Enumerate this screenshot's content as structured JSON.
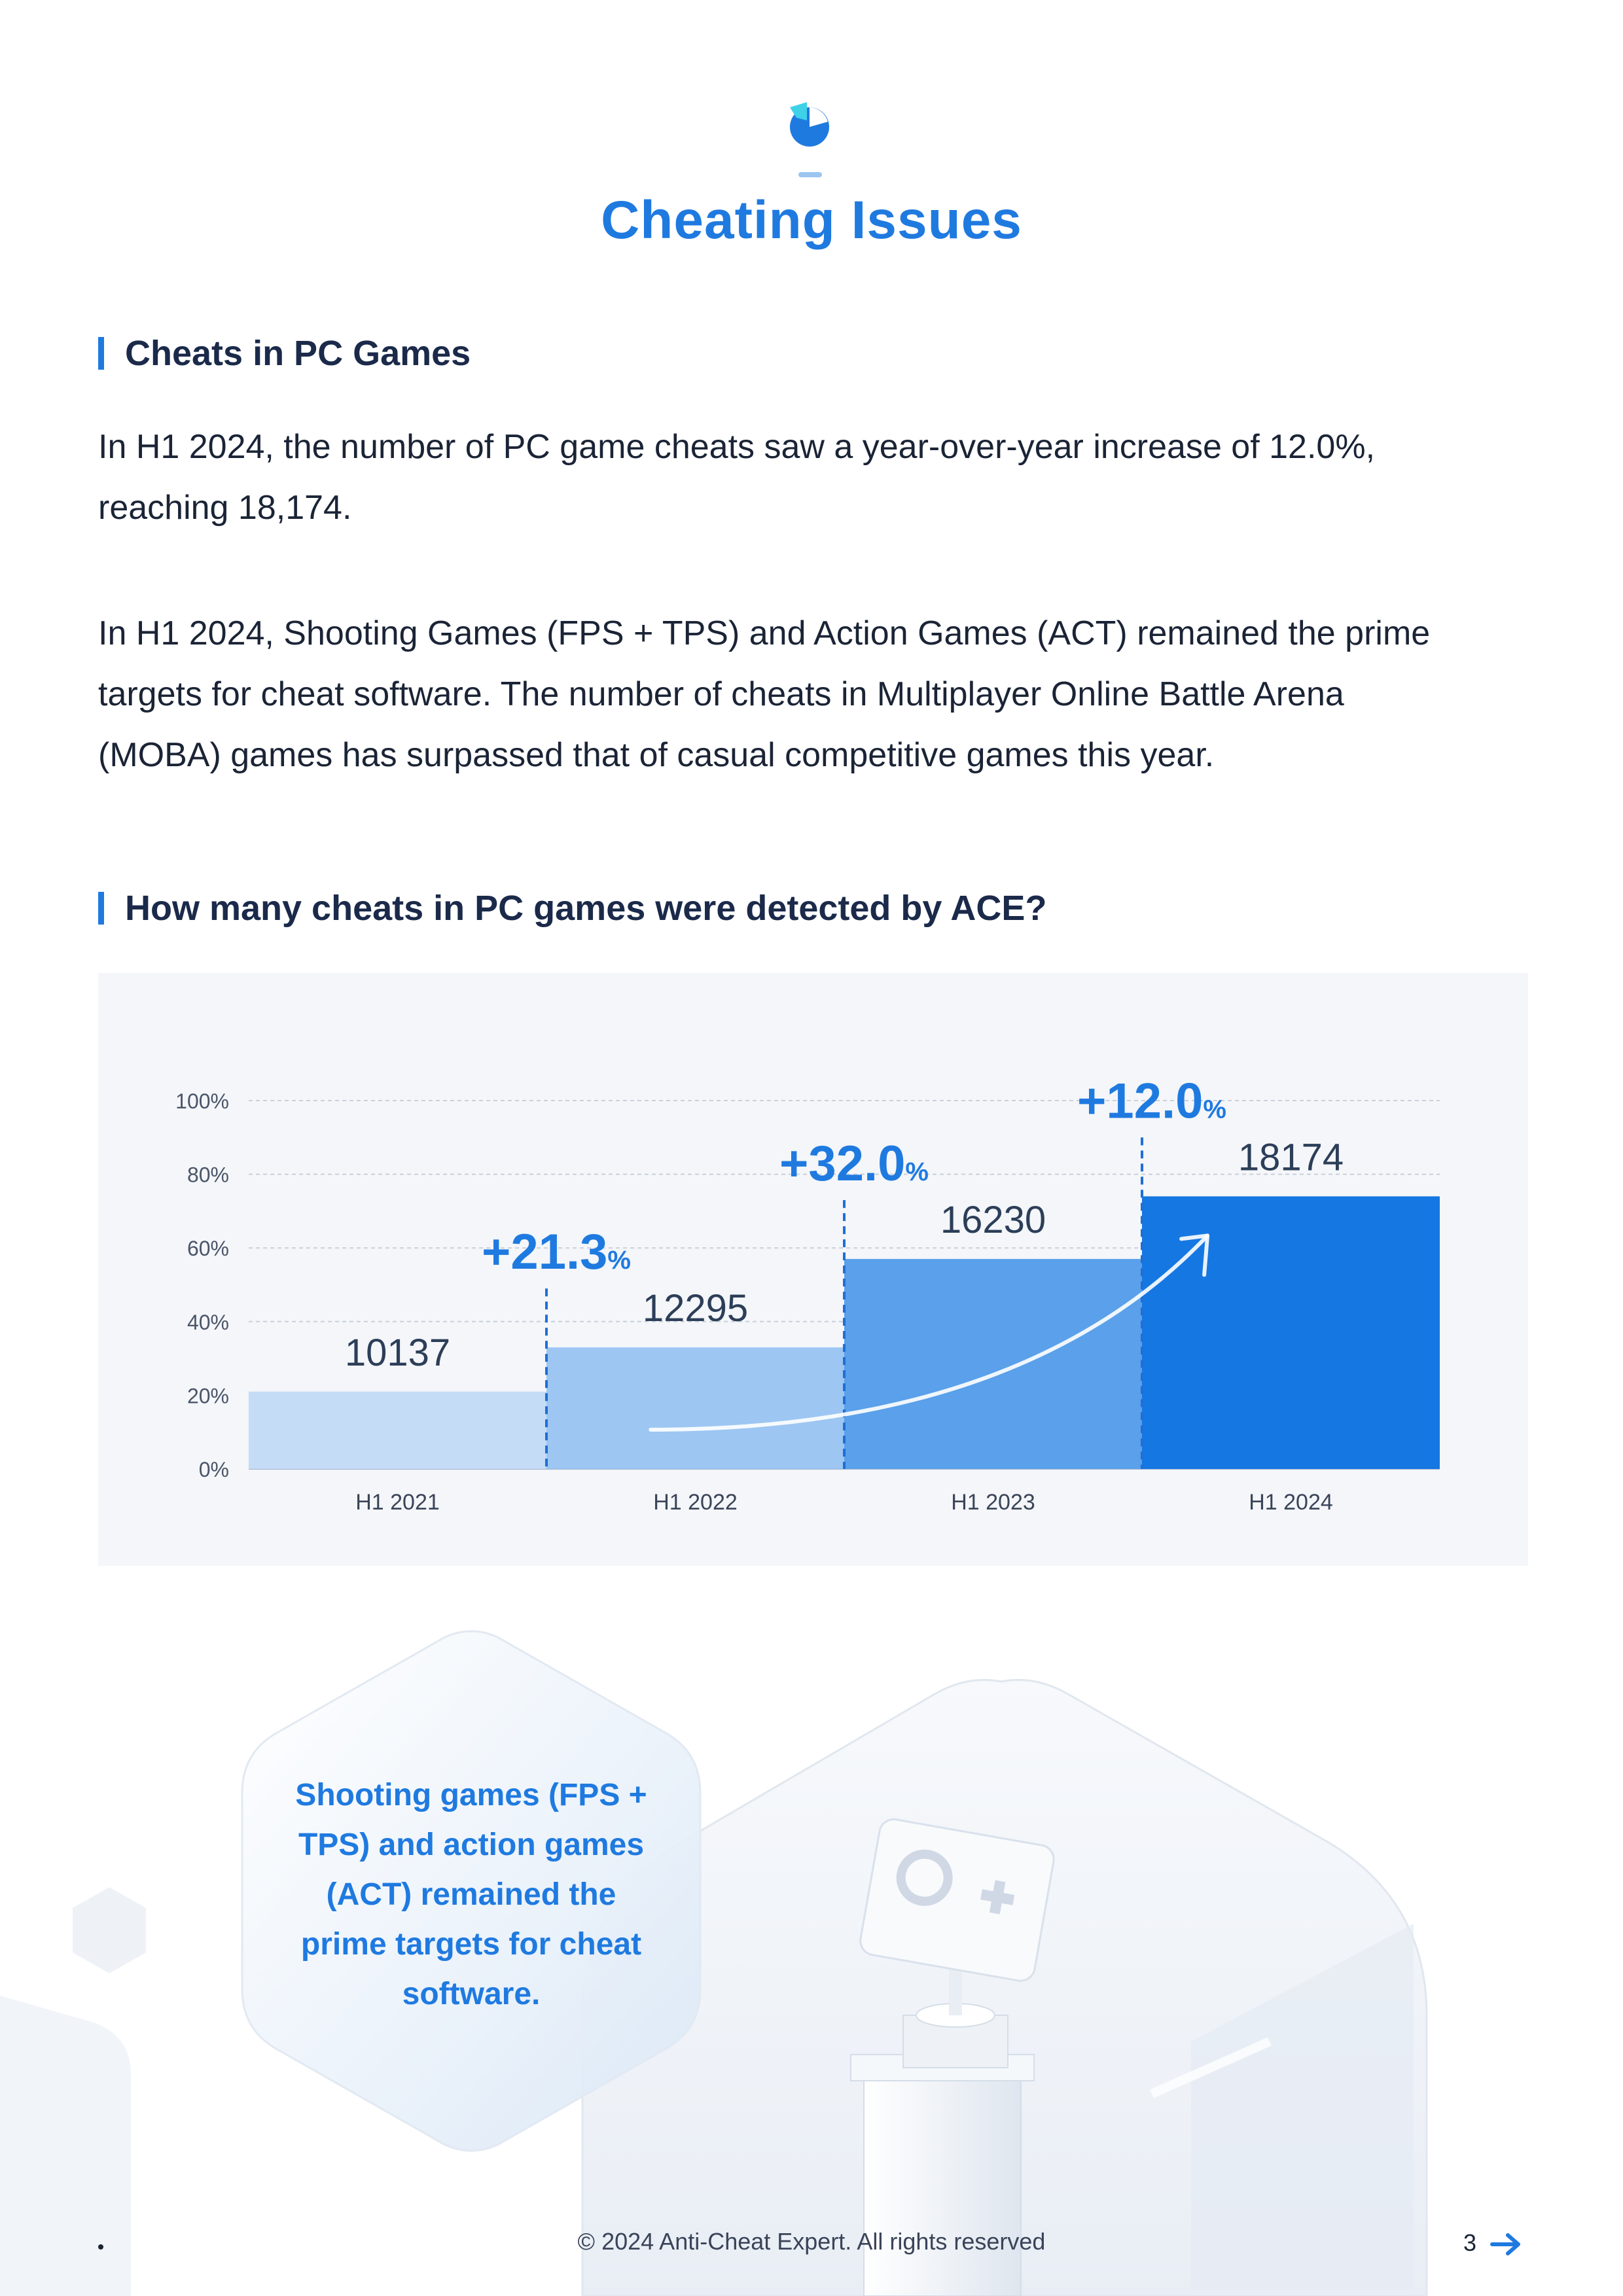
{
  "header": {
    "title": "Cheating Issues",
    "logo_icon": "pie-chart-logo-icon"
  },
  "sections": {
    "pc_games": {
      "heading": "Cheats in PC Games",
      "paragraph1_line1": "In H1 2024, the number of PC game cheats saw a year-over-year increase of 12.0%,",
      "paragraph1_line2": "reaching 18,174.",
      "paragraph2_line1": "In H1 2024, Shooting Games (FPS + TPS) and Action Games (ACT) remained the prime",
      "paragraph2_line2": "targets for cheat software.  The number of cheats in Multiplayer Online Battle Arena",
      "paragraph2_line3": "(MOBA) games has surpassed that of casual competitive games this year."
    },
    "detected": {
      "heading": "How many cheats in PC games were detected by ACE?"
    }
  },
  "chart_data": {
    "type": "bar",
    "categories": [
      "H1 2021",
      "H1 2022",
      "H1 2023",
      "H1 2024"
    ],
    "values": [
      10137,
      12295,
      16230,
      18174
    ],
    "value_labels": [
      "10137",
      "12295",
      "16230",
      "18174"
    ],
    "growth_labels": [
      "+21.3",
      "+32.0",
      "+12.0"
    ],
    "growth_unit": "%",
    "y_ticks": [
      "0%",
      "20%",
      "40%",
      "60%",
      "80%",
      "100%"
    ],
    "bar_levels_pct": [
      21,
      33,
      57,
      74
    ],
    "ylim": [
      0,
      100
    ],
    "grid": true,
    "bar_colors": [
      "#c5dcf6",
      "#9dc6f2",
      "#5aa0ea",
      "#1577e2"
    ],
    "divider_color": "#1f6fd6",
    "trend_arrow": true,
    "title": "",
    "xlabel": "",
    "ylabel": ""
  },
  "callout": {
    "line1": "Shooting games (FPS +",
    "line2": "TPS) and action games",
    "line3": "(ACT) remained the",
    "line4": "prime targets for cheat",
    "line5": "software."
  },
  "footer": {
    "copyright": "© 2024  Anti-Cheat Expert. All rights reserved",
    "page_number": "3",
    "next_icon": "arrow-right-icon"
  },
  "colors": {
    "accent": "#1f7ae0",
    "heading": "#1b2a4a",
    "panel_bg": "#f4f6f9"
  }
}
